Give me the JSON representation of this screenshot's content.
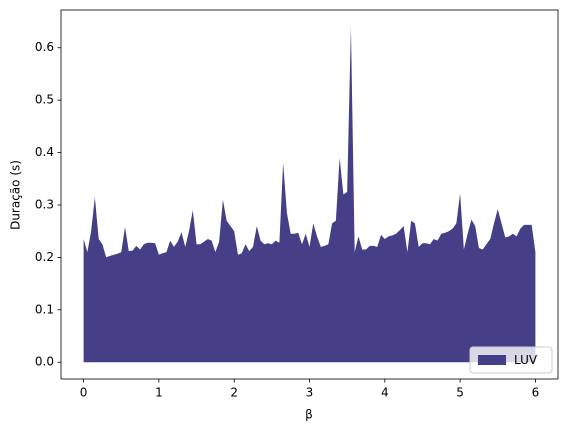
{
  "chart_data": {
    "type": "area",
    "xlabel": "β",
    "ylabel": "Duração (s)",
    "xlim": [
      -0.3,
      6.3
    ],
    "ylim": [
      -0.032,
      0.672
    ],
    "xticks": [
      0,
      1,
      2,
      3,
      4,
      5,
      6
    ],
    "yticks": [
      {
        "value": 0,
        "label": "0.0"
      },
      0.1,
      0.2,
      0.3,
      0.4,
      0.5,
      0.6
    ],
    "legend": "lower right",
    "x": [
      0,
      0.05,
      0.1,
      0.15,
      0.2,
      0.25,
      0.3,
      0.35,
      0.4,
      0.45,
      0.5,
      0.55,
      0.6,
      0.65,
      0.7,
      0.75,
      0.8,
      0.85,
      0.9,
      0.95,
      1,
      1.05,
      1.1,
      1.15,
      1.2,
      1.25,
      1.3,
      1.35,
      1.4,
      1.45,
      1.5,
      1.55,
      1.6,
      1.65,
      1.7,
      1.75,
      1.8,
      1.85,
      1.9,
      1.95,
      2,
      2.05,
      2.1,
      2.15,
      2.2,
      2.25,
      2.3,
      2.35,
      2.4,
      2.45,
      2.5,
      2.55,
      2.6,
      2.65,
      2.7,
      2.75,
      2.8,
      2.85,
      2.9,
      2.95,
      3,
      3.05,
      3.1,
      3.15,
      3.2,
      3.25,
      3.3,
      3.35,
      3.4,
      3.45,
      3.5,
      3.55,
      3.6,
      3.65,
      3.7,
      3.75,
      3.8,
      3.85,
      3.9,
      3.95,
      4,
      4.05,
      4.1,
      4.15,
      4.2,
      4.25,
      4.3,
      4.35,
      4.4,
      4.45,
      4.5,
      4.55,
      4.6,
      4.65,
      4.7,
      4.75,
      4.8,
      4.85,
      4.9,
      4.95,
      5,
      5.05,
      5.1,
      5.15,
      5.2,
      5.25,
      5.3,
      5.35,
      5.4,
      5.45,
      5.5,
      5.55,
      5.6,
      5.65,
      5.7,
      5.75,
      5.8,
      5.85,
      5.9,
      5.95,
      6
    ],
    "series": [
      {
        "name": "LUV",
        "color": "#453f87",
        "values": [
          0.235,
          0.21,
          0.25,
          0.315,
          0.235,
          0.225,
          0.2,
          0.203,
          0.205,
          0.207,
          0.21,
          0.258,
          0.212,
          0.213,
          0.222,
          0.215,
          0.225,
          0.228,
          0.228,
          0.227,
          0.205,
          0.208,
          0.21,
          0.232,
          0.22,
          0.23,
          0.248,
          0.22,
          0.25,
          0.29,
          0.225,
          0.225,
          0.23,
          0.235,
          0.232,
          0.21,
          0.23,
          0.31,
          0.27,
          0.26,
          0.25,
          0.205,
          0.208,
          0.225,
          0.212,
          0.22,
          0.26,
          0.232,
          0.225,
          0.227,
          0.225,
          0.232,
          0.228,
          0.38,
          0.285,
          0.245,
          0.245,
          0.247,
          0.225,
          0.245,
          0.22,
          0.265,
          0.24,
          0.22,
          0.222,
          0.225,
          0.265,
          0.27,
          0.39,
          0.32,
          0.325,
          0.64,
          0.21,
          0.24,
          0.215,
          0.215,
          0.222,
          0.222,
          0.22,
          0.243,
          0.235,
          0.24,
          0.242,
          0.245,
          0.252,
          0.26,
          0.21,
          0.27,
          0.265,
          0.22,
          0.227,
          0.227,
          0.225,
          0.235,
          0.232,
          0.245,
          0.247,
          0.25,
          0.255,
          0.265,
          0.322,
          0.215,
          0.245,
          0.272,
          0.26,
          0.218,
          0.215,
          0.225,
          0.235,
          0.265,
          0.292,
          0.265,
          0.238,
          0.24,
          0.245,
          0.24,
          0.255,
          0.262,
          0.262,
          0.262,
          0.21
        ]
      }
    ]
  }
}
